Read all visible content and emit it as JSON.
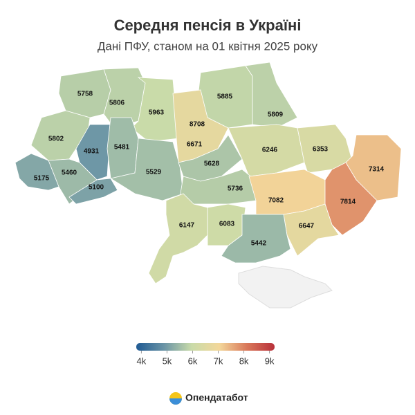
{
  "chart_data": {
    "type": "choropleth",
    "title": "Середня пенсія в Україні",
    "subtitle": "Дані ПФУ, станом на 01 квітня 2025 року",
    "values": [
      5758,
      5806,
      5963,
      5885,
      5809,
      8708,
      6671,
      5802,
      4931,
      5481,
      6246,
      6353,
      7314,
      5460,
      5175,
      5100,
      5529,
      5628,
      5736,
      7082,
      7814,
      6147,
      6083,
      6647,
      5442
    ],
    "colorbar": {
      "lim": [
        3800,
        9200
      ],
      "colors": [
        "#1f5a93",
        "#6a94a6",
        "#c9dba9",
        "#f3d79a",
        "#d9785a",
        "#b8303a"
      ],
      "ticks": [
        {
          "value": 4000,
          "label": "4k"
        },
        {
          "value": 5000,
          "label": "5k"
        },
        {
          "value": 6000,
          "label": "6k"
        },
        {
          "value": 7000,
          "label": "7k"
        },
        {
          "value": 8000,
          "label": "8k"
        },
        {
          "value": 9000,
          "label": "9k"
        }
      ]
    },
    "brand": "Опендатабот"
  }
}
